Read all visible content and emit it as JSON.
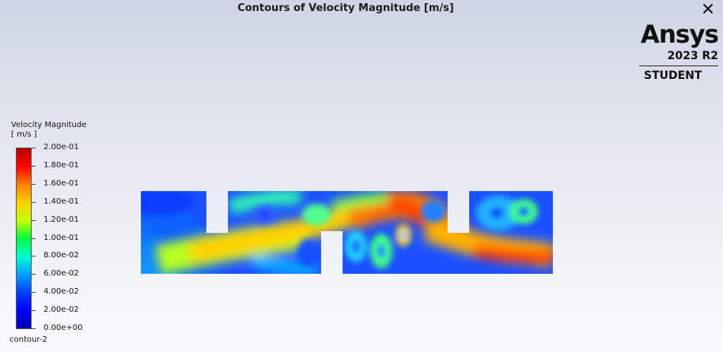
{
  "window": {
    "title": "Contours of Velocity Magnitude [m/s]",
    "close_icon": "close-icon"
  },
  "brand": {
    "name": "Ansys",
    "version": "2023 R2",
    "edition": "STUDENT"
  },
  "legend": {
    "title": "Velocity Magnitude",
    "unit": "[ m/s ]",
    "min": 0.0,
    "max": 0.2,
    "tick_labels": [
      "2.00e-01",
      "1.80e-01",
      "1.60e-01",
      "1.40e-01",
      "1.20e-01",
      "1.00e-01",
      "8.00e-02",
      "6.00e-02",
      "4.00e-02",
      "2.00e-02",
      "0.00e+00"
    ],
    "colors": [
      "#b40000",
      "#ff0000",
      "#ff7f00",
      "#ffd000",
      "#c8ff00",
      "#00ff40",
      "#00ffd0",
      "#00a0ff",
      "#0040ff",
      "#0000ff",
      "#0000b0"
    ]
  },
  "contour_name": "contour-2"
}
